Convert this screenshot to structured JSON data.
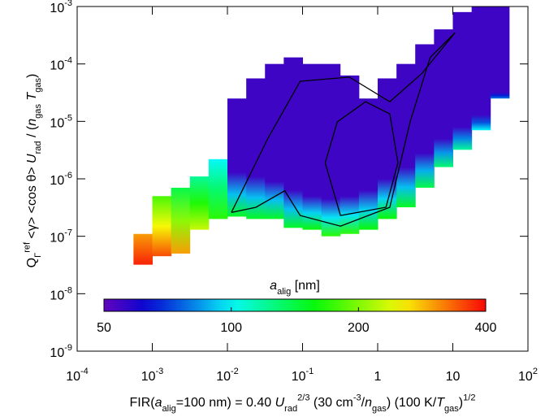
{
  "chart_data": {
    "type": "histogram2d",
    "x_label": [
      {
        "t": "FIR("
      },
      {
        "t": "a",
        "it": true
      },
      {
        "t": "alig",
        "pos": "sub"
      },
      {
        "t": "=100 nm) = 0.40 "
      },
      {
        "t": "U",
        "it": true
      },
      {
        "t": "rad",
        "pos": "sub"
      },
      {
        "t": "2/3",
        "pos": "sup"
      },
      {
        "t": " (30 cm"
      },
      {
        "t": "-3",
        "pos": "sup"
      },
      {
        "t": "/"
      },
      {
        "t": "n",
        "it": true
      },
      {
        "t": "gas",
        "pos": "sub"
      },
      {
        "t": ") (100 K/"
      },
      {
        "t": "T",
        "it": true
      },
      {
        "t": "gas",
        "pos": "sub"
      },
      {
        "t": ")"
      },
      {
        "t": "1/2",
        "pos": "sup"
      }
    ],
    "y_label": [
      {
        "t": "Q"
      },
      {
        "t": "Γ",
        "pos": "sub"
      },
      {
        "t": "ref",
        "pos": "sup"
      },
      {
        "t": " <γ> <cos θ> "
      },
      {
        "t": "U",
        "it": true
      },
      {
        "t": "rad",
        "pos": "sub"
      },
      {
        "t": " / ("
      },
      {
        "t": "n",
        "it": true
      },
      {
        "t": "gas",
        "pos": "sub"
      },
      {
        "t": " "
      },
      {
        "t": "T",
        "it": true
      },
      {
        "t": "gas",
        "pos": "sub"
      },
      {
        "t": ")"
      }
    ],
    "log_x": true,
    "log_y": true,
    "xlim": [
      0.0001,
      100
    ],
    "ylim": [
      1e-09,
      0.001
    ],
    "xticks": [
      {
        "value": 0.0001,
        "label": "10",
        "exp": "-4"
      },
      {
        "value": 0.001,
        "label": "10",
        "exp": "-3"
      },
      {
        "value": 0.01,
        "label": "10",
        "exp": "-2"
      },
      {
        "value": 0.1,
        "label": "10",
        "exp": "-1"
      },
      1,
      10,
      {
        "value": 100,
        "label": "10",
        "exp": "2"
      }
    ],
    "yticks": [
      {
        "value": 1e-09,
        "label": "10",
        "exp": "-9"
      },
      {
        "value": 1e-08,
        "label": "10",
        "exp": "-8"
      },
      {
        "value": 1e-07,
        "label": "10",
        "exp": "-7"
      },
      {
        "value": 1e-06,
        "label": "10",
        "exp": "-6"
      },
      {
        "value": 1e-05,
        "label": "10",
        "exp": "-5"
      },
      {
        "value": 0.0001,
        "label": "10",
        "exp": "-4"
      },
      {
        "value": 0.001,
        "label": "10",
        "exp": "-3"
      }
    ],
    "x_edges": [
      0.000562,
      0.001,
      0.00178,
      0.00316,
      0.00562,
      0.01,
      0.0178,
      0.0316,
      0.0562,
      0.1,
      0.178,
      0.316,
      0.562,
      1,
      1.78,
      3.16,
      5.62,
      10,
      17.8,
      31.6,
      56.2
    ],
    "y_low": [
      3.2e-08,
      4.5e-08,
      5e-08,
      1.3e-07,
      2e-07,
      2.2e-07,
      2e-07,
      2e-07,
      1.4e-07,
      1.3e-07,
      1e-07,
      1.1e-07,
      1.3e-07,
      2e-07,
      3.2e-07,
      7e-07,
      1.6e-06,
      3.2e-06,
      7e-06,
      2.5e-05
    ],
    "y_high": [
      1.1e-07,
      5e-07,
      7e-07,
      1.1e-06,
      2.2e-06,
      2.5e-05,
      5.6e-05,
      0.0001,
      0.00013,
      0.0001,
      0.0001,
      6.3e-05,
      2.5e-05,
      5.6e-05,
      0.0001,
      0.00022,
      0.0004,
      0.0008,
      0.001,
      0.001
    ],
    "y_purple": [
      1.1e-07,
      5e-07,
      7e-07,
      1.1e-06,
      2.2e-06,
      1.3e-06,
      1.1e-06,
      9e-07,
      6.3e-07,
      5e-07,
      4.5e-07,
      5e-07,
      6.3e-07,
      1e-06,
      1.6e-06,
      2.8e-06,
      5e-06,
      8e-06,
      1.3e-05,
      3.2e-05
    ],
    "a_low": [
      380,
      350,
      300,
      230,
      170,
      150,
      150,
      150,
      150,
      160,
      170,
      170,
      160,
      160,
      150,
      140,
      130,
      120,
      100,
      80
    ],
    "a_high": [
      300,
      180,
      140,
      120,
      100,
      55,
      55,
      55,
      55,
      55,
      55,
      55,
      55,
      55,
      55,
      55,
      55,
      55,
      55,
      55
    ],
    "contours": [
      {
        "x": [
          0.0113,
          0.0347,
          0.093,
          0.42,
          1.45,
          3.9,
          10.7,
          5.0,
          2.7,
          1.45,
          0.32,
          0.093,
          0.058,
          0.024,
          0.0113
        ],
        "y": [
          2.6e-07,
          5.1e-06,
          5e-05,
          5.9e-05,
          2.2e-05,
          6.9e-05,
          0.00035,
          0.00013,
          9.8e-06,
          3.2e-07,
          1.5e-07,
          2.3e-07,
          6.2e-07,
          3.2e-07,
          2.6e-07
        ]
      },
      {
        "x": [
          0.2,
          0.29,
          0.69,
          1.45,
          1.86,
          1.29,
          0.32,
          0.2
        ],
        "y": [
          1.9e-06,
          9.8e-06,
          2.2e-05,
          1.35e-05,
          1.9e-06,
          3.2e-07,
          2.3e-07,
          1.9e-06
        ]
      }
    ],
    "colorbar": {
      "label": [
        {
          "t": "a",
          "it": true
        },
        {
          "t": "alig",
          "pos": "sub"
        },
        {
          "t": " [nm]"
        }
      ],
      "lim": [
        50,
        400
      ],
      "ticks": [
        50,
        100,
        200,
        400
      ],
      "log": true
    }
  }
}
